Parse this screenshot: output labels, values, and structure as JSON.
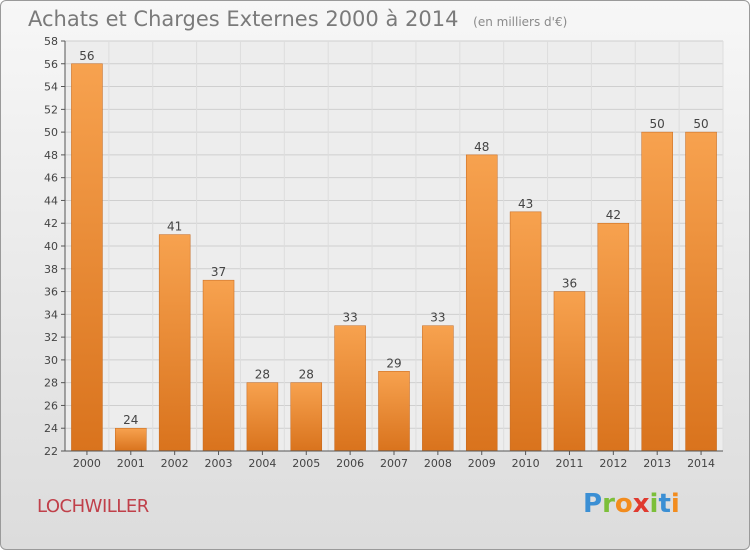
{
  "chart_data": {
    "type": "bar",
    "title": "Achats et Charges Externes 2000 à 2014",
    "subtitle": "(en milliers d'€)",
    "xlabel": "",
    "ylabel": "",
    "categories": [
      "2000",
      "2001",
      "2002",
      "2003",
      "2004",
      "2005",
      "2006",
      "2007",
      "2008",
      "2009",
      "2010",
      "2011",
      "2012",
      "2013",
      "2014"
    ],
    "values": [
      56,
      24,
      41,
      37,
      28,
      28,
      33,
      29,
      33,
      48,
      43,
      36,
      42,
      50,
      50
    ],
    "ylim": [
      22,
      58
    ],
    "yticks": [
      22,
      24,
      26,
      28,
      30,
      32,
      34,
      36,
      38,
      40,
      42,
      44,
      46,
      48,
      50,
      52,
      54,
      56,
      58
    ],
    "grid": true,
    "bar_color_top": "#f7a24f",
    "bar_color_bottom": "#d9731d"
  },
  "footer": {
    "town": "LOCHWILLER",
    "logo_letters": [
      {
        "ch": "P",
        "color": "#3b8fd4"
      },
      {
        "ch": "r",
        "color": "#7cbf3a"
      },
      {
        "ch": "o",
        "color": "#f28c1e"
      },
      {
        "ch": "x",
        "color": "#e03a2f"
      },
      {
        "ch": "i",
        "color": "#7cbf3a"
      },
      {
        "ch": "t",
        "color": "#3b8fd4"
      },
      {
        "ch": "i",
        "color": "#f28c1e"
      }
    ]
  }
}
